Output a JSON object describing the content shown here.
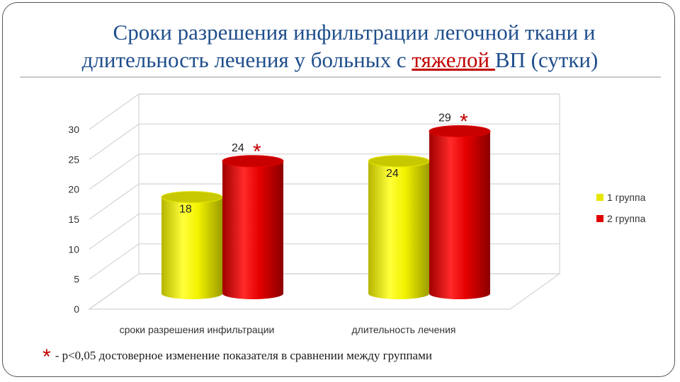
{
  "title": {
    "line1": "Сроки разрешения инфильтрации легочной ткани и",
    "line2_pre": "длительность лечения у больных с ",
    "line2_red": "тяжелой ",
    "line2_post": "ВП (сутки)"
  },
  "chart_data": {
    "type": "bar",
    "categories": [
      "сроки разрешения инфильтрации",
      "длительность лечения"
    ],
    "series": [
      {
        "name": "1 группа",
        "values": [
          18,
          24
        ],
        "color": "#E6E600",
        "markers": [
          "",
          ""
        ]
      },
      {
        "name": "2 группа",
        "values": [
          24,
          29
        ],
        "color": "#E00000",
        "markers": [
          "*",
          "*"
        ]
      }
    ],
    "ylim": [
      0,
      30
    ],
    "yticks": [
      0,
      5,
      10,
      15,
      20,
      25,
      30
    ],
    "grid": true,
    "legend": "right",
    "marker_color": "#C00000"
  },
  "footnote": {
    "star": "*",
    "text": "- p<0,05 достоверное изменение показателя в сравнении между группами"
  }
}
